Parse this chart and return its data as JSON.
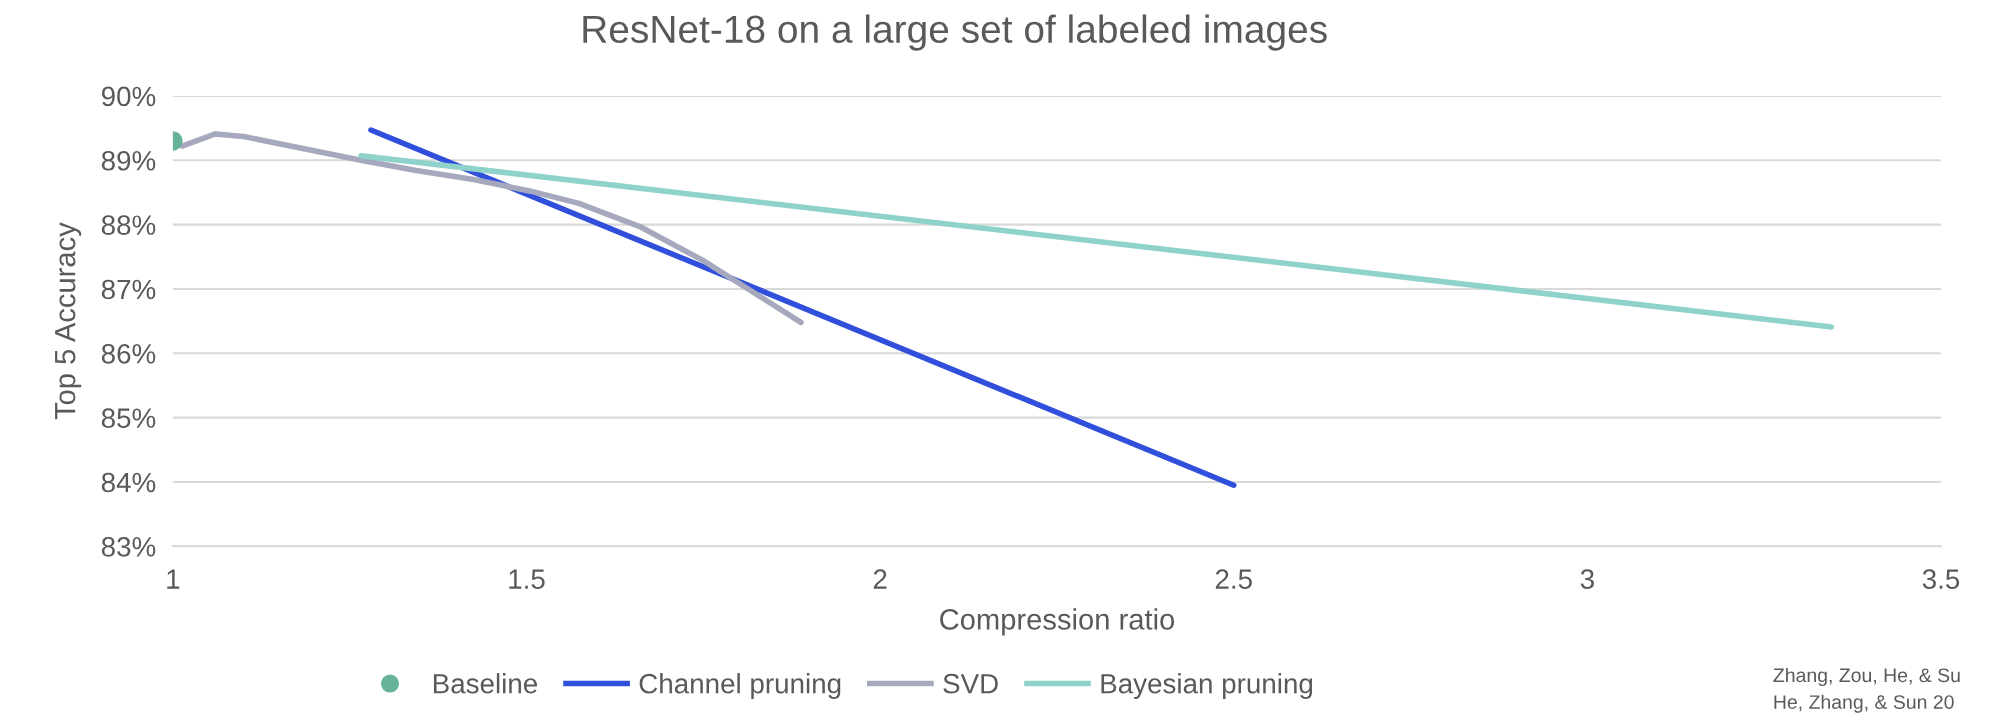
{
  "chart_data": {
    "type": "line",
    "title": "ResNet-18 on a large set of labeled images",
    "xlabel": "Compression ratio",
    "ylabel": "Top 5 Accuracy",
    "xlim": [
      1,
      3.5
    ],
    "xticks": [
      1,
      1.5,
      2,
      2.5,
      3,
      3.5
    ],
    "ylim": [
      83,
      90
    ],
    "yticks": [
      {
        "value": 83,
        "label": "83%"
      },
      {
        "value": 84,
        "label": "84%"
      },
      {
        "value": 85,
        "label": "85%"
      },
      {
        "value": 86,
        "label": "86%"
      },
      {
        "value": 87,
        "label": "87%"
      },
      {
        "value": 88,
        "label": "88%"
      },
      {
        "value": 89,
        "label": "89%"
      },
      {
        "value": 90,
        "label": "90%"
      }
    ],
    "grid": "y",
    "legend": "bottom",
    "line_style": "solid",
    "series": [
      {
        "name": "Baseline",
        "type": "scatter",
        "color": "#66b39a",
        "x": [
          1.0
        ],
        "values": [
          89.3
        ]
      },
      {
        "name": "Channel pruning",
        "color": "#3050dc",
        "x": [
          1.28,
          2.5
        ],
        "values": [
          89.47,
          83.95
        ]
      },
      {
        "name": "SVD",
        "color": "#a6a8bd",
        "x": [
          1.0,
          1.013,
          1.06,
          1.1,
          1.266,
          1.344,
          1.425,
          1.506,
          1.574,
          1.662,
          1.75,
          1.888
        ],
        "values": [
          89.33,
          89.22,
          89.41,
          89.37,
          89.0,
          88.84,
          88.7,
          88.52,
          88.33,
          87.96,
          87.44,
          86.48
        ]
      },
      {
        "name": "Bayesian pruning",
        "color": "#8fd1cb",
        "x": [
          1.266,
          3.345
        ],
        "values": [
          89.07,
          86.41
        ]
      }
    ],
    "annotations": [
      "Zhang, Zou, He, & Su",
      "He, Zhang, & Sun 20"
    ]
  }
}
